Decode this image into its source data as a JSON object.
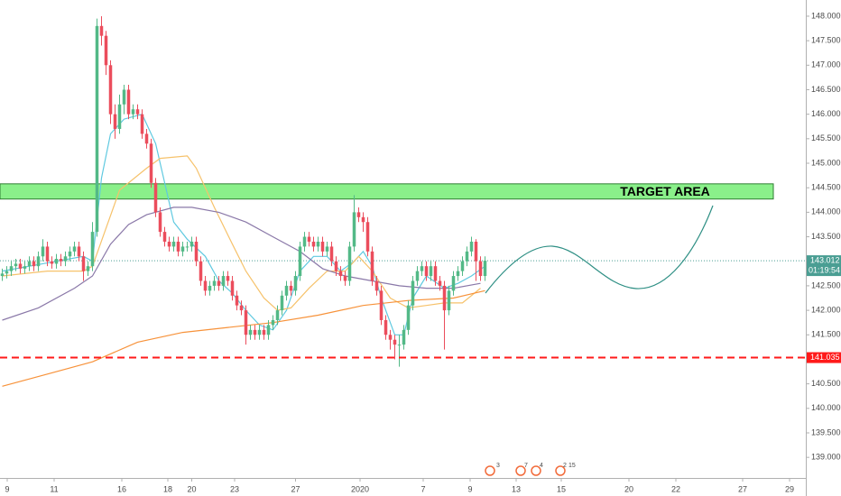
{
  "chart_data": {
    "type": "candlestick",
    "up_color": "#53b987",
    "down_color": "#eb4d5c",
    "candles": {
      "open": [
        142.7,
        142.75,
        142.8,
        142.9,
        142.95,
        142.85,
        142.9,
        143.0,
        142.9,
        143.1,
        143.3,
        143.0,
        142.95,
        143.05,
        143.0,
        143.1,
        143.2,
        143.3,
        143.1,
        142.8,
        142.9,
        143.6,
        147.8,
        147.6,
        147.0,
        146.0,
        145.7,
        146.2,
        146.5,
        146.0,
        146.1,
        146.0,
        145.6,
        145.4,
        144.6,
        144.0,
        143.6,
        143.4,
        143.3,
        143.4,
        143.2,
        143.3,
        143.3,
        143.4,
        143.0,
        142.6,
        142.4,
        142.5,
        142.6,
        142.5,
        142.7,
        142.6,
        142.3,
        142.1,
        142.0,
        141.5,
        141.6,
        141.5,
        141.6,
        141.5,
        141.7,
        141.8,
        142.0,
        142.3,
        142.5,
        142.4,
        142.7,
        143.3,
        143.5,
        143.4,
        143.3,
        143.4,
        143.2,
        143.3,
        143.0,
        142.8,
        142.7,
        142.6,
        143.3,
        144.0,
        143.9,
        143.8,
        143.2,
        142.6,
        142.4,
        141.8,
        141.5,
        141.4,
        141.3,
        141.3,
        141.6,
        142.1,
        142.6,
        142.8,
        142.9,
        142.7,
        142.9,
        142.6,
        142.5,
        142.0,
        142.4,
        142.7,
        142.8,
        143.0,
        143.2,
        143.4,
        143.0,
        142.7
      ],
      "high": [
        142.85,
        142.9,
        143.0,
        143.05,
        143.05,
        143.0,
        143.1,
        143.1,
        143.2,
        143.45,
        143.4,
        143.1,
        143.15,
        143.15,
        143.2,
        143.3,
        143.4,
        143.4,
        143.2,
        143.0,
        143.8,
        147.95,
        148.0,
        147.7,
        147.1,
        146.2,
        146.4,
        146.6,
        146.6,
        146.2,
        146.2,
        146.1,
        145.7,
        145.5,
        144.7,
        144.1,
        143.7,
        143.5,
        143.5,
        143.5,
        143.4,
        143.4,
        143.5,
        143.5,
        143.1,
        142.7,
        142.6,
        142.7,
        142.7,
        142.8,
        142.8,
        142.7,
        142.4,
        142.2,
        142.1,
        141.7,
        141.7,
        141.7,
        141.7,
        141.8,
        141.9,
        142.1,
        142.4,
        142.6,
        142.6,
        142.8,
        143.4,
        143.6,
        143.6,
        143.5,
        143.5,
        143.5,
        143.4,
        143.4,
        143.1,
        142.9,
        142.8,
        143.4,
        144.35,
        144.1,
        144.0,
        143.9,
        143.3,
        142.7,
        142.5,
        141.9,
        141.6,
        141.5,
        141.5,
        141.7,
        142.2,
        142.7,
        142.9,
        143.0,
        143.0,
        143.0,
        143.0,
        142.7,
        142.6,
        142.5,
        142.8,
        142.9,
        143.1,
        143.3,
        143.5,
        143.45,
        143.1,
        143.1
      ],
      "low": [
        142.6,
        142.65,
        142.7,
        142.8,
        142.75,
        142.75,
        142.8,
        142.8,
        142.8,
        143.0,
        142.9,
        142.85,
        142.85,
        142.9,
        142.9,
        143.0,
        143.1,
        143.0,
        142.6,
        142.7,
        142.8,
        143.5,
        147.4,
        146.8,
        145.8,
        145.5,
        145.6,
        146.0,
        145.9,
        145.9,
        145.9,
        145.5,
        145.3,
        144.5,
        143.9,
        143.5,
        143.3,
        143.2,
        143.2,
        143.1,
        143.1,
        143.2,
        143.2,
        142.9,
        142.5,
        142.3,
        142.3,
        142.4,
        142.4,
        142.4,
        142.5,
        142.2,
        142.0,
        141.9,
        141.3,
        141.4,
        141.4,
        141.4,
        141.4,
        141.4,
        141.6,
        141.7,
        141.9,
        142.2,
        142.3,
        142.3,
        142.6,
        143.2,
        143.3,
        143.2,
        143.2,
        143.1,
        143.1,
        142.9,
        142.7,
        142.6,
        142.5,
        142.5,
        143.2,
        143.8,
        143.6,
        143.1,
        142.5,
        142.3,
        141.7,
        141.4,
        141.2,
        141.0,
        140.85,
        141.2,
        141.5,
        142.0,
        142.5,
        142.7,
        142.6,
        142.6,
        142.5,
        142.4,
        141.2,
        141.9,
        142.3,
        142.6,
        142.7,
        142.9,
        143.1,
        142.6,
        142.6,
        142.6
      ],
      "close": [
        142.75,
        142.8,
        142.9,
        142.95,
        142.85,
        142.9,
        143.0,
        142.9,
        143.1,
        143.3,
        143.0,
        142.95,
        143.05,
        143.0,
        143.1,
        143.2,
        143.3,
        143.1,
        142.8,
        142.9,
        143.6,
        147.8,
        147.6,
        147.0,
        146.0,
        145.7,
        146.2,
        146.5,
        146.0,
        146.1,
        146.0,
        145.6,
        145.4,
        144.6,
        144.0,
        143.6,
        143.4,
        143.3,
        143.4,
        143.2,
        143.3,
        143.3,
        143.4,
        143.0,
        142.6,
        142.4,
        142.5,
        142.6,
        142.5,
        142.7,
        142.6,
        142.3,
        142.1,
        142.0,
        141.5,
        141.6,
        141.5,
        141.6,
        141.5,
        141.7,
        141.8,
        142.0,
        142.3,
        142.5,
        142.4,
        142.7,
        143.3,
        143.5,
        143.4,
        143.3,
        143.4,
        143.2,
        143.3,
        143.0,
        142.8,
        142.7,
        142.6,
        143.3,
        144.0,
        143.9,
        143.8,
        143.2,
        142.6,
        142.4,
        141.8,
        141.5,
        141.4,
        141.3,
        141.3,
        141.6,
        142.1,
        142.6,
        142.8,
        142.9,
        142.7,
        142.9,
        142.6,
        142.5,
        142.0,
        142.4,
        142.7,
        142.8,
        143.0,
        143.2,
        143.4,
        143.0,
        142.7,
        143.012
      ]
    },
    "series": [
      {
        "color": "#5fc9e0",
        "x": [
          0,
          6,
          12,
          18,
          20,
          22,
          24,
          27,
          31,
          34,
          36,
          38,
          41,
          45,
          48,
          51,
          54,
          57,
          60,
          63,
          66,
          69,
          72,
          75,
          78,
          80,
          82,
          84,
          87,
          89,
          91,
          94,
          98,
          101,
          104,
          107
        ],
        "values": [
          142.8,
          142.9,
          143.0,
          143.1,
          143.0,
          144.7,
          145.6,
          145.9,
          146.0,
          145.4,
          144.6,
          143.8,
          143.45,
          143.1,
          142.6,
          142.35,
          142.0,
          141.7,
          141.6,
          142.0,
          142.8,
          143.1,
          143.1,
          142.8,
          143.0,
          143.2,
          142.9,
          142.25,
          141.5,
          141.5,
          142.25,
          142.7,
          142.45,
          142.55,
          142.7,
          142.9
        ]
      },
      {
        "color": "#f6c26b",
        "x": [
          0,
          10,
          18,
          20,
          26,
          32,
          35,
          41,
          43,
          47,
          51,
          54,
          58,
          61,
          64,
          68,
          72,
          76,
          79,
          82,
          86,
          90,
          94,
          98,
          102,
          106
        ],
        "values": [
          142.7,
          142.8,
          142.8,
          142.9,
          144.45,
          144.9,
          145.1,
          145.15,
          144.9,
          144.1,
          143.35,
          142.8,
          142.25,
          142.0,
          142.05,
          142.45,
          142.8,
          142.8,
          143.1,
          142.8,
          142.25,
          142.05,
          142.1,
          142.15,
          142.15,
          142.45
        ]
      },
      {
        "color": "#8a78a8",
        "x": [
          0,
          8,
          16,
          20,
          24,
          28,
          32,
          38,
          42,
          48,
          54,
          60,
          66,
          71,
          76,
          82,
          88,
          94,
          100,
          106
        ],
        "values": [
          141.8,
          142.05,
          142.45,
          142.7,
          143.35,
          143.75,
          143.95,
          144.1,
          144.1,
          144.0,
          143.8,
          143.5,
          143.2,
          142.85,
          142.7,
          142.6,
          142.5,
          142.45,
          142.45,
          142.55
        ]
      },
      {
        "color": "#f7923a",
        "x": [
          0,
          10,
          20,
          30,
          40,
          50,
          60,
          70,
          80,
          90,
          100,
          107
        ],
        "values": [
          140.45,
          140.7,
          140.95,
          141.35,
          141.55,
          141.65,
          141.75,
          141.9,
          142.1,
          142.2,
          142.25,
          142.4
        ]
      }
    ],
    "target_zone": {
      "label": "TARGET AREA",
      "high": 144.58,
      "low": 144.27,
      "color": "#8af08a"
    },
    "support_line": {
      "value": 141.035,
      "label": "141.035",
      "color": "#ff1a1a"
    },
    "last_price": {
      "value": 143.012,
      "label": "143.012",
      "countdown": "01:19:54",
      "color": "#4a9e93"
    },
    "events": [
      "3",
      "7",
      "4",
      "2",
      "15"
    ],
    "xlim": [
      -0.5,
      178.1
    ],
    "xticks": [
      {
        "value": 1.1,
        "label": "9"
      },
      {
        "value": 11.5,
        "label": "11"
      },
      {
        "value": 26.5,
        "label": "16"
      },
      {
        "value": 36.7,
        "label": "18"
      },
      {
        "value": 42,
        "label": "20"
      },
      {
        "value": 51.5,
        "label": "23"
      },
      {
        "value": 65,
        "label": "27"
      },
      {
        "value": 79.3,
        "label": "2020"
      },
      {
        "value": 93.3,
        "label": "7"
      },
      {
        "value": 103.7,
        "label": "9"
      },
      {
        "value": 113.9,
        "label": "13"
      },
      {
        "value": 123.9,
        "label": "15"
      },
      {
        "value": 138.9,
        "label": "20"
      },
      {
        "value": 149.3,
        "label": "22"
      },
      {
        "value": 164.1,
        "label": "27"
      },
      {
        "value": 174.5,
        "label": "29"
      }
    ],
    "ylim": [
      138.58,
      148.33
    ],
    "yticks": [
      {
        "value": 139,
        "label": "139.000"
      },
      {
        "value": 139.5,
        "label": "139.500"
      },
      {
        "value": 140,
        "label": "140.000"
      },
      {
        "value": 140.5,
        "label": "140.500"
      },
      {
        "value": 141,
        "label": "141.000"
      },
      {
        "value": 141.5,
        "label": "141.500"
      },
      {
        "value": 142,
        "label": "142.000"
      },
      {
        "value": 142.5,
        "label": "142.500"
      },
      {
        "value": 143,
        "label": "143.000"
      },
      {
        "value": 143.5,
        "label": "143.500"
      },
      {
        "value": 144,
        "label": "144.000"
      },
      {
        "value": 144.5,
        "label": "144.500"
      },
      {
        "value": 145,
        "label": "145.000"
      },
      {
        "value": 145.5,
        "label": "145.500"
      },
      {
        "value": 146,
        "label": "146.000"
      },
      {
        "value": 146.5,
        "label": "146.500"
      },
      {
        "value": 147,
        "label": "147.000"
      },
      {
        "value": 147.5,
        "label": "147.500"
      },
      {
        "value": 148,
        "label": "148.000"
      }
    ]
  }
}
